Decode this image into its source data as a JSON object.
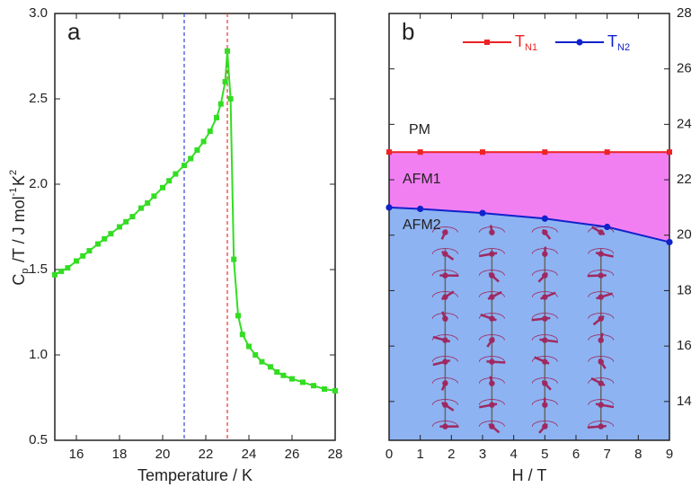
{
  "chart_data": [
    {
      "type": "line",
      "panel_label": "a",
      "xlabel": "Temperature / K",
      "ylabel_parts": [
        {
          "text": "C"
        },
        {
          "text": "p",
          "script": "sub"
        },
        {
          "text": " /T / J mol"
        },
        {
          "text": "-1",
          "script": "sup"
        },
        {
          "text": "K"
        },
        {
          "text": "2",
          "script": "sup"
        }
      ],
      "x": [
        15,
        15.3,
        15.6,
        16,
        16.3,
        16.6,
        17,
        17.3,
        17.6,
        18,
        18.3,
        18.6,
        19,
        19.3,
        19.6,
        20,
        20.3,
        20.6,
        21,
        21.3,
        21.6,
        21.9,
        22.2,
        22.5,
        22.7,
        22.9,
        23,
        23.15,
        23.3,
        23.5,
        23.7,
        24,
        24.3,
        24.6,
        25,
        25.3,
        25.6,
        26,
        26.5,
        27,
        27.5,
        28
      ],
      "values": [
        1.47,
        1.49,
        1.51,
        1.55,
        1.58,
        1.61,
        1.65,
        1.68,
        1.71,
        1.75,
        1.78,
        1.81,
        1.86,
        1.89,
        1.93,
        1.98,
        2.02,
        2.06,
        2.11,
        2.15,
        2.2,
        2.25,
        2.31,
        2.39,
        2.47,
        2.6,
        2.78,
        2.5,
        1.56,
        1.23,
        1.12,
        1.05,
        1.0,
        0.96,
        0.93,
        0.9,
        0.88,
        0.86,
        0.84,
        0.82,
        0.8,
        0.79
      ],
      "color": "#33dd22",
      "marker": "square",
      "vlines": [
        {
          "x": 21,
          "color": "#3344dd"
        },
        {
          "x": 23,
          "color": "#ee3333"
        }
      ],
      "xlim": [
        15,
        28
      ],
      "xticks": [
        16,
        18,
        20,
        22,
        24,
        26,
        28
      ],
      "ylim": [
        0.5,
        3.0
      ],
      "yticks": [
        0.5,
        {
          "value": 1.0,
          "label": "1.0"
        },
        1.5,
        {
          "value": 2.0,
          "label": "2.0"
        },
        2.5,
        {
          "value": 3.0,
          "label": "3.0"
        }
      ],
      "yaxis_side": "left"
    },
    {
      "type": "line",
      "panel_label": "b",
      "xlabel": "H / T",
      "ylabel": "Temperature / K",
      "x": [
        0,
        1,
        3,
        5,
        7,
        9
      ],
      "series": [
        {
          "name": "T",
          "subscript": "N1",
          "color": "#ee2222",
          "marker": "square",
          "values": [
            23,
            23,
            23,
            23,
            23,
            23
          ]
        },
        {
          "name": "T",
          "subscript": "N2",
          "color": "#1122cc",
          "marker": "circle",
          "values": [
            21.0,
            20.95,
            20.8,
            20.6,
            20.3,
            19.75
          ]
        }
      ],
      "regions": [
        {
          "label": "PM",
          "color": "#ffffff"
        },
        {
          "label": "AFM1",
          "color": "#f27ff2"
        },
        {
          "label": "AFM2",
          "color": "#8db3f2"
        }
      ],
      "legend": "upper right",
      "xlim": [
        0,
        9
      ],
      "xticks": [
        0,
        1,
        2,
        3,
        4,
        5,
        6,
        7,
        8,
        9
      ],
      "ylim": [
        12.6,
        28
      ],
      "yticks": [
        14,
        16,
        18,
        20,
        22,
        24,
        26,
        28
      ],
      "yaxis_side": "right"
    }
  ]
}
